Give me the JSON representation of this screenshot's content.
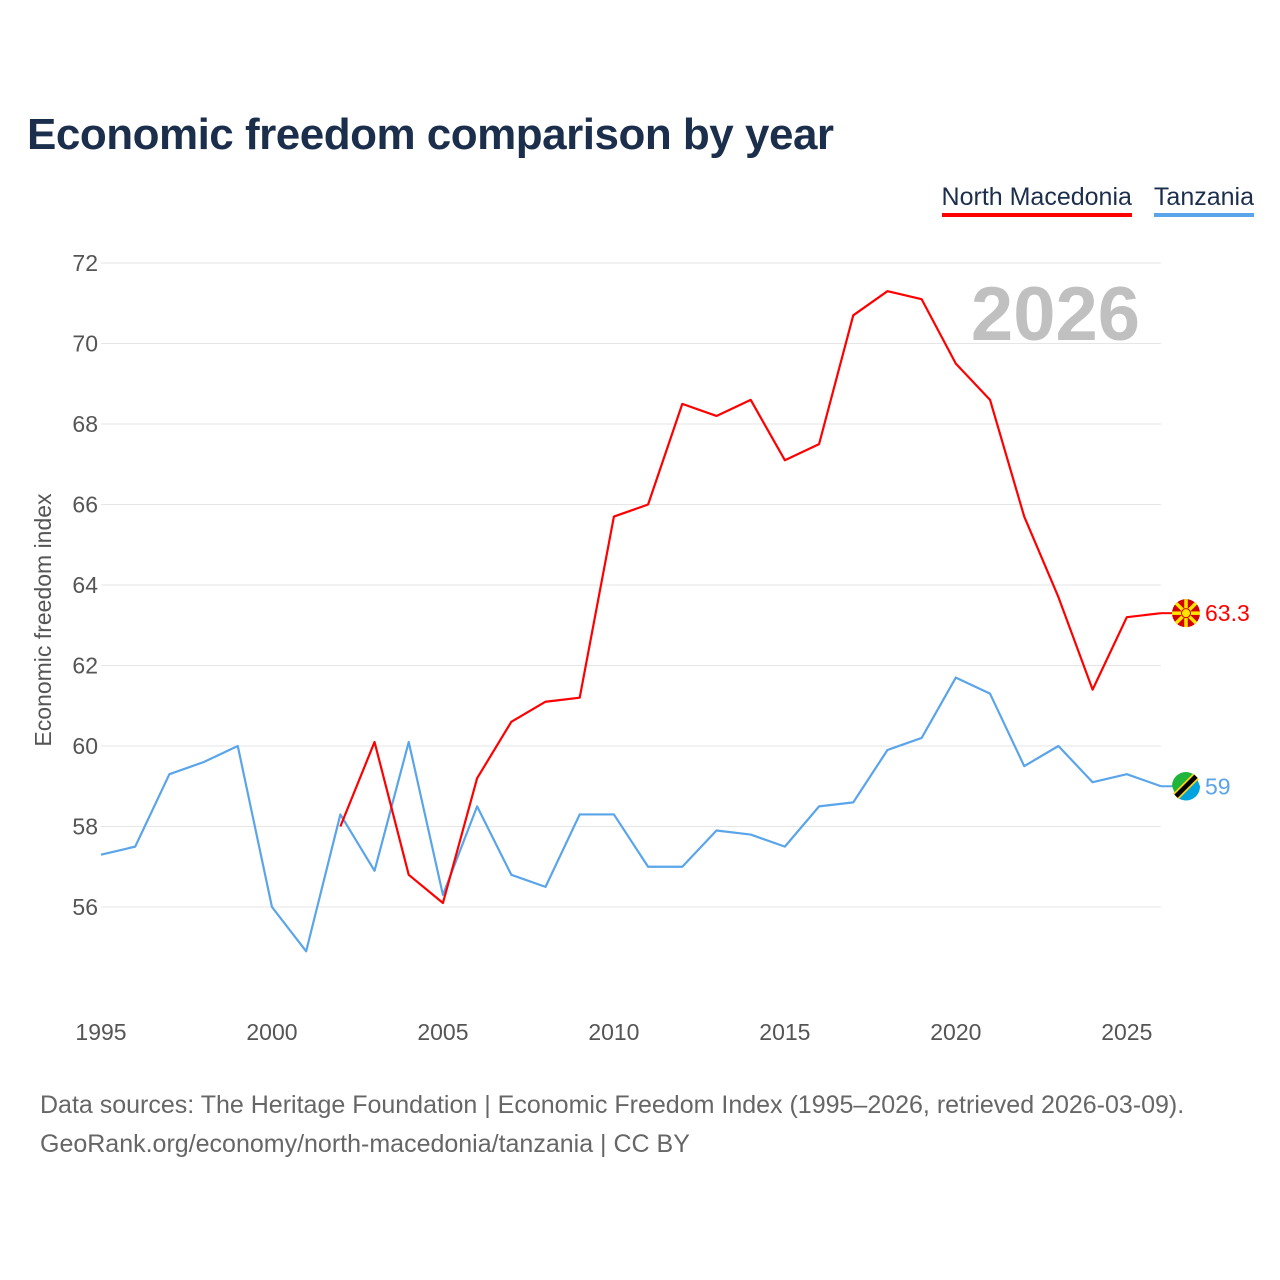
{
  "chart_data": {
    "type": "line",
    "title": "Economic freedom comparison by year",
    "ylabel": "Economic freedom index",
    "xlabel": "",
    "ylim": [
      54,
      72
    ],
    "xlim": [
      1995,
      2026
    ],
    "yticks": [
      56,
      58,
      60,
      62,
      64,
      66,
      68,
      70,
      72
    ],
    "xticks": [
      1995,
      2000,
      2005,
      2010,
      2015,
      2020,
      2025
    ],
    "year_label": "2026",
    "grid": true,
    "legend_position": "top-right",
    "series": [
      {
        "name": "North Macedonia",
        "color": "#ff0000",
        "end_label": "63.3",
        "x": [
          2002,
          2003,
          2004,
          2005,
          2006,
          2007,
          2008,
          2009,
          2010,
          2011,
          2012,
          2013,
          2014,
          2015,
          2016,
          2017,
          2018,
          2019,
          2020,
          2021,
          2022,
          2023,
          2024,
          2025,
          2026
        ],
        "values": [
          58.0,
          60.1,
          56.8,
          56.1,
          59.2,
          60.6,
          61.1,
          61.2,
          65.7,
          66.0,
          68.5,
          68.2,
          68.6,
          67.1,
          67.5,
          70.7,
          71.3,
          71.1,
          69.5,
          68.6,
          65.7,
          63.7,
          61.4,
          63.2,
          63.3
        ]
      },
      {
        "name": "Tanzania",
        "color": "#5aa5ea",
        "end_label": "59",
        "x": [
          1995,
          1996,
          1997,
          1998,
          1999,
          2000,
          2001,
          2002,
          2003,
          2004,
          2005,
          2006,
          2007,
          2008,
          2009,
          2010,
          2011,
          2012,
          2013,
          2014,
          2015,
          2016,
          2017,
          2018,
          2019,
          2020,
          2021,
          2022,
          2023,
          2024,
          2025,
          2026
        ],
        "values": [
          57.3,
          57.5,
          59.3,
          59.6,
          60.0,
          56.0,
          54.9,
          58.3,
          56.9,
          60.1,
          56.3,
          58.5,
          56.8,
          56.5,
          58.3,
          58.3,
          57.0,
          57.0,
          57.9,
          57.8,
          57.5,
          58.5,
          58.6,
          59.9,
          60.2,
          61.7,
          61.3,
          59.5,
          60.0,
          59.1,
          59.3,
          59.0
        ]
      }
    ]
  },
  "footer": {
    "line1": "Data sources: The Heritage Foundation | Economic Freedom Index (1995–2026, retrieved 2026-03-09).",
    "line2": "GeoRank.org/economy/north-macedonia/tanzania | CC BY"
  }
}
